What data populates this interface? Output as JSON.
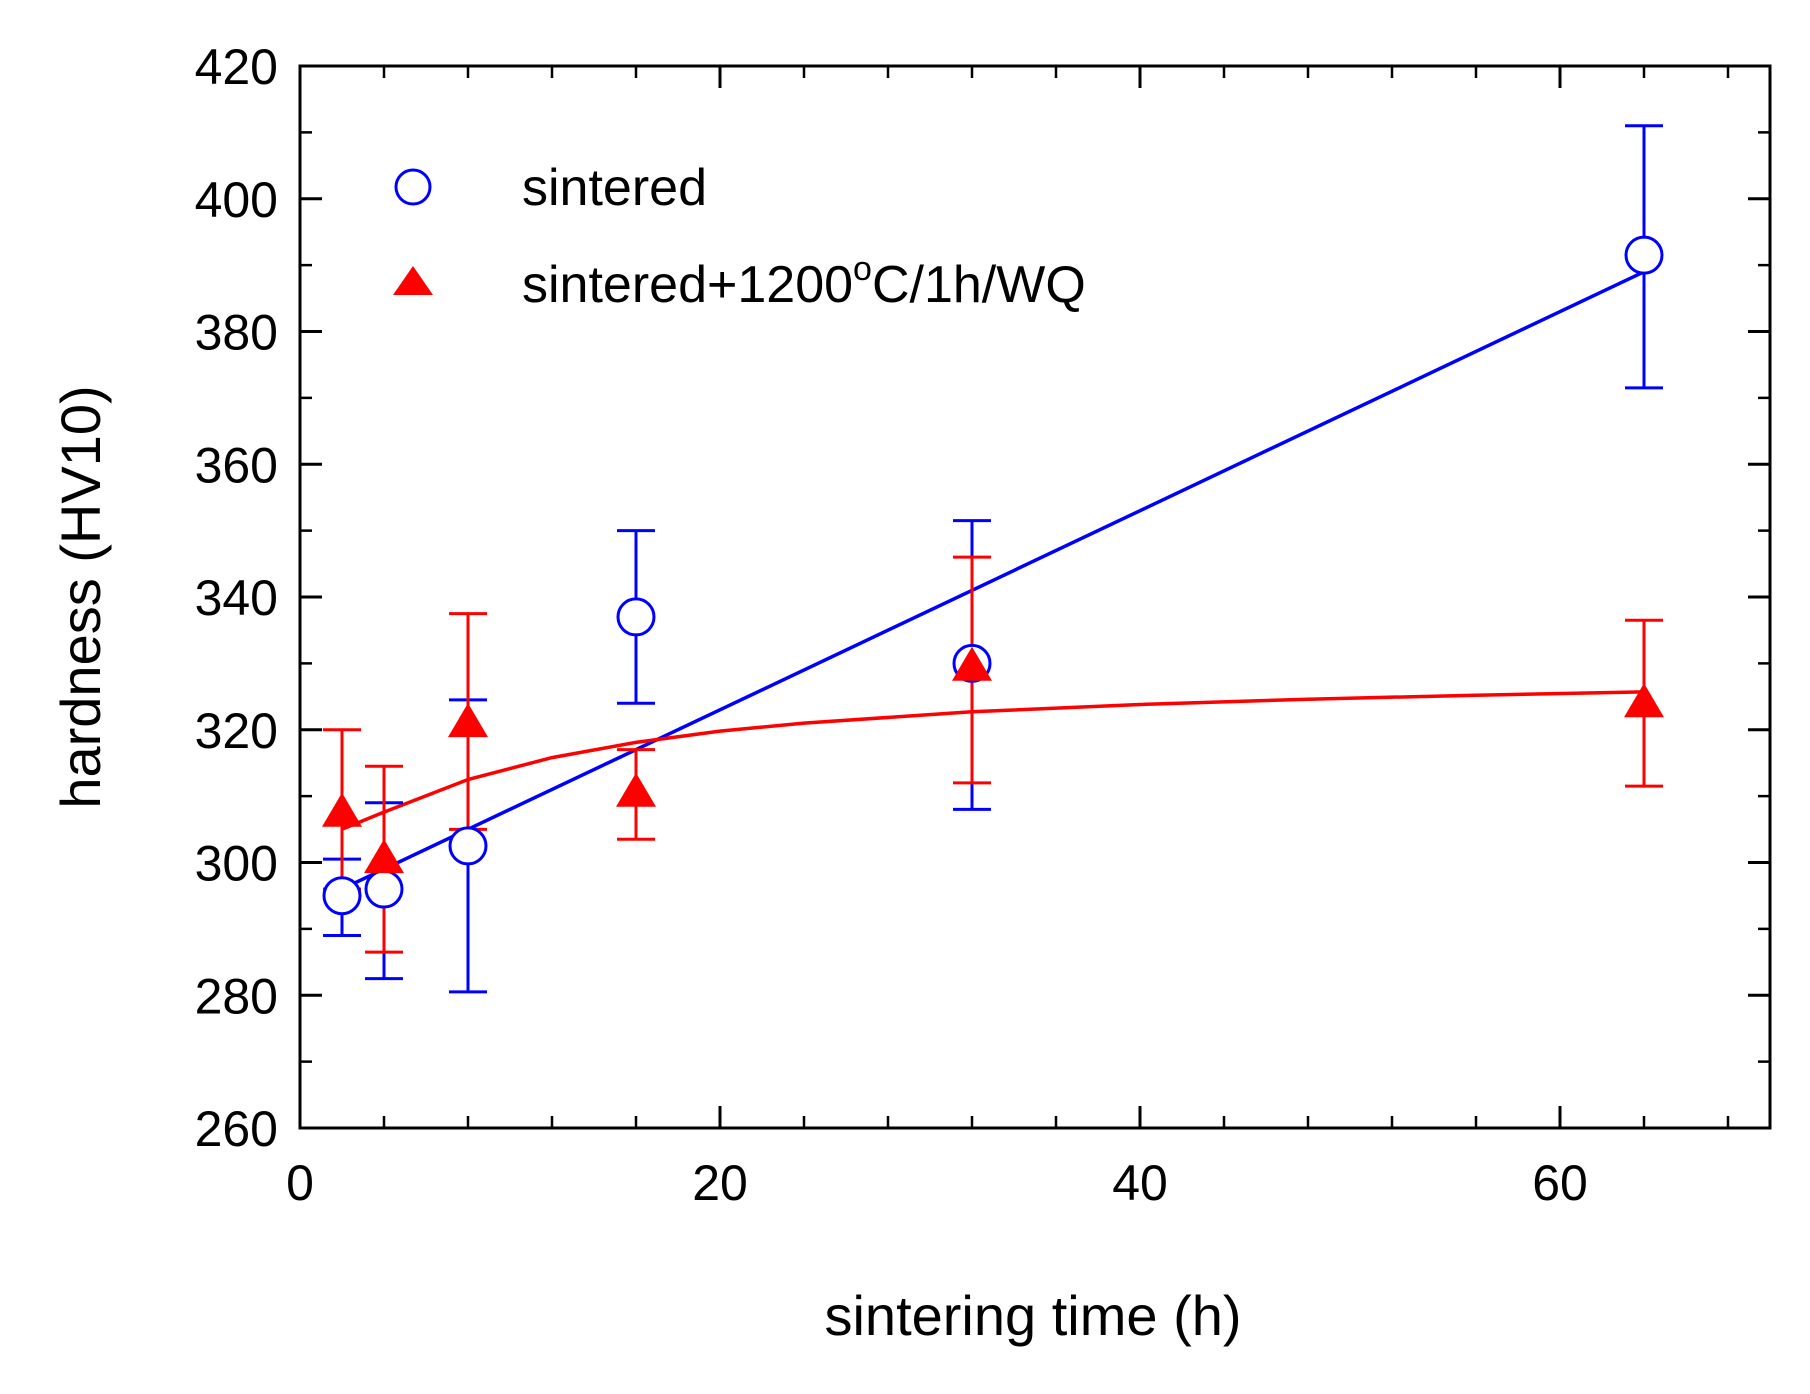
{
  "chart_data": {
    "type": "scatter",
    "title": "",
    "xlabel": "sintering time (h)",
    "ylabel": "hardness (HV10)",
    "xlim": [
      0,
      70
    ],
    "ylim": [
      260,
      420
    ],
    "xticks": [
      0,
      20,
      40,
      60
    ],
    "yticks": [
      260,
      280,
      300,
      320,
      340,
      360,
      380,
      400,
      420
    ],
    "x_minor_step": 4,
    "y_minor_step": 10,
    "grid": false,
    "legend_position": "top-left",
    "series": [
      {
        "name": "sintered",
        "marker": "open-circle",
        "color": "#0000ff",
        "x": [
          2,
          4,
          8,
          16,
          32,
          64
        ],
        "y": [
          295,
          296,
          302.5,
          337,
          330,
          391.5
        ],
        "err_low": [
          289,
          282.5,
          280.5,
          324,
          308,
          371.5
        ],
        "err_high": [
          300.5,
          309,
          324.5,
          350,
          351.5,
          411
        ],
        "fit": {
          "type": "linear",
          "x": [
            2,
            64
          ],
          "y": [
            296,
            389
          ]
        }
      },
      {
        "name": "sintered+1200°C/1h/WQ",
        "legend_parts": [
          "sintered+1200",
          "o",
          "C/1h/WQ"
        ],
        "marker": "filled-triangle",
        "color": "#ff0000",
        "x": [
          2,
          4,
          8,
          16,
          32,
          64
        ],
        "y": [
          307.5,
          300.5,
          321,
          310.5,
          329.5,
          324
        ],
        "err_low": [
          296,
          286.5,
          305,
          303.5,
          312,
          311.5
        ],
        "err_high": [
          320,
          314.5,
          337.5,
          317,
          346,
          336.5
        ],
        "fit": {
          "type": "saturating",
          "x": [
            2,
            4,
            8,
            12,
            16,
            20,
            24,
            32,
            40,
            48,
            56,
            64
          ],
          "y": [
            305,
            307.6,
            312.5,
            315.8,
            318.1,
            319.8,
            321,
            322.7,
            323.8,
            324.6,
            325.2,
            325.7
          ]
        }
      }
    ]
  }
}
